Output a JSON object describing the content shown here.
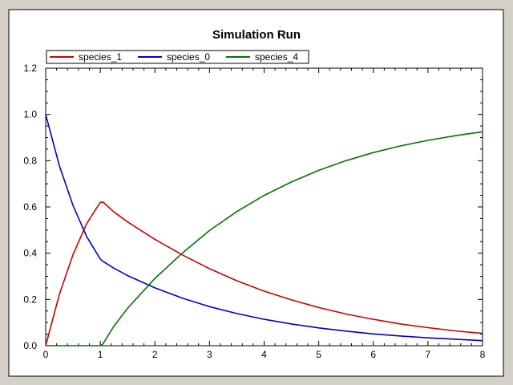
{
  "chart_data": {
    "type": "line",
    "title": "Simulation Run",
    "xlabel": "",
    "ylabel": "",
    "xlim": [
      0,
      8
    ],
    "ylim": [
      0,
      1.2
    ],
    "xticks": [
      "0",
      "1",
      "2",
      "3",
      "4",
      "5",
      "6",
      "7",
      "8"
    ],
    "yticks": [
      "0.0",
      "0.2",
      "0.4",
      "0.6",
      "0.8",
      "1.0",
      "1.2"
    ],
    "grid": false,
    "legend_position": "top-left",
    "series": [
      {
        "name": "species_1",
        "color": "#cc0000",
        "x": [
          0,
          0.25,
          0.5,
          0.75,
          1.0,
          1.05,
          1.25,
          1.5,
          2,
          2.5,
          3,
          3.5,
          4,
          4.5,
          5,
          5.5,
          6,
          6.5,
          7,
          7.5,
          8
        ],
        "y": [
          0,
          0.221,
          0.394,
          0.528,
          0.62,
          0.621,
          0.578,
          0.535,
          0.46,
          0.393,
          0.333,
          0.281,
          0.236,
          0.198,
          0.165,
          0.137,
          0.114,
          0.094,
          0.078,
          0.064,
          0.053
        ]
      },
      {
        "name": "species_0",
        "color": "#0000cc",
        "x": [
          0,
          0.25,
          0.5,
          0.75,
          1.0,
          1.05,
          1.25,
          1.5,
          2,
          2.5,
          3,
          3.5,
          4,
          4.5,
          5,
          5.5,
          6,
          6.5,
          7,
          7.5,
          8
        ],
        "y": [
          1.0,
          0.779,
          0.606,
          0.472,
          0.375,
          0.365,
          0.335,
          0.303,
          0.25,
          0.206,
          0.169,
          0.139,
          0.114,
          0.094,
          0.077,
          0.063,
          0.051,
          0.042,
          0.034,
          0.028,
          0.022
        ]
      },
      {
        "name": "species_4",
        "color": "#007700",
        "x": [
          0,
          0.5,
          1.0,
          1.05,
          1.25,
          1.5,
          2,
          2.5,
          3,
          3.5,
          4,
          4.5,
          5,
          5.5,
          6,
          6.5,
          7,
          7.5,
          8
        ],
        "y": [
          0,
          0,
          0,
          0.008,
          0.085,
          0.162,
          0.291,
          0.4,
          0.498,
          0.58,
          0.65,
          0.708,
          0.758,
          0.8,
          0.835,
          0.864,
          0.888,
          0.908,
          0.925
        ]
      }
    ]
  }
}
